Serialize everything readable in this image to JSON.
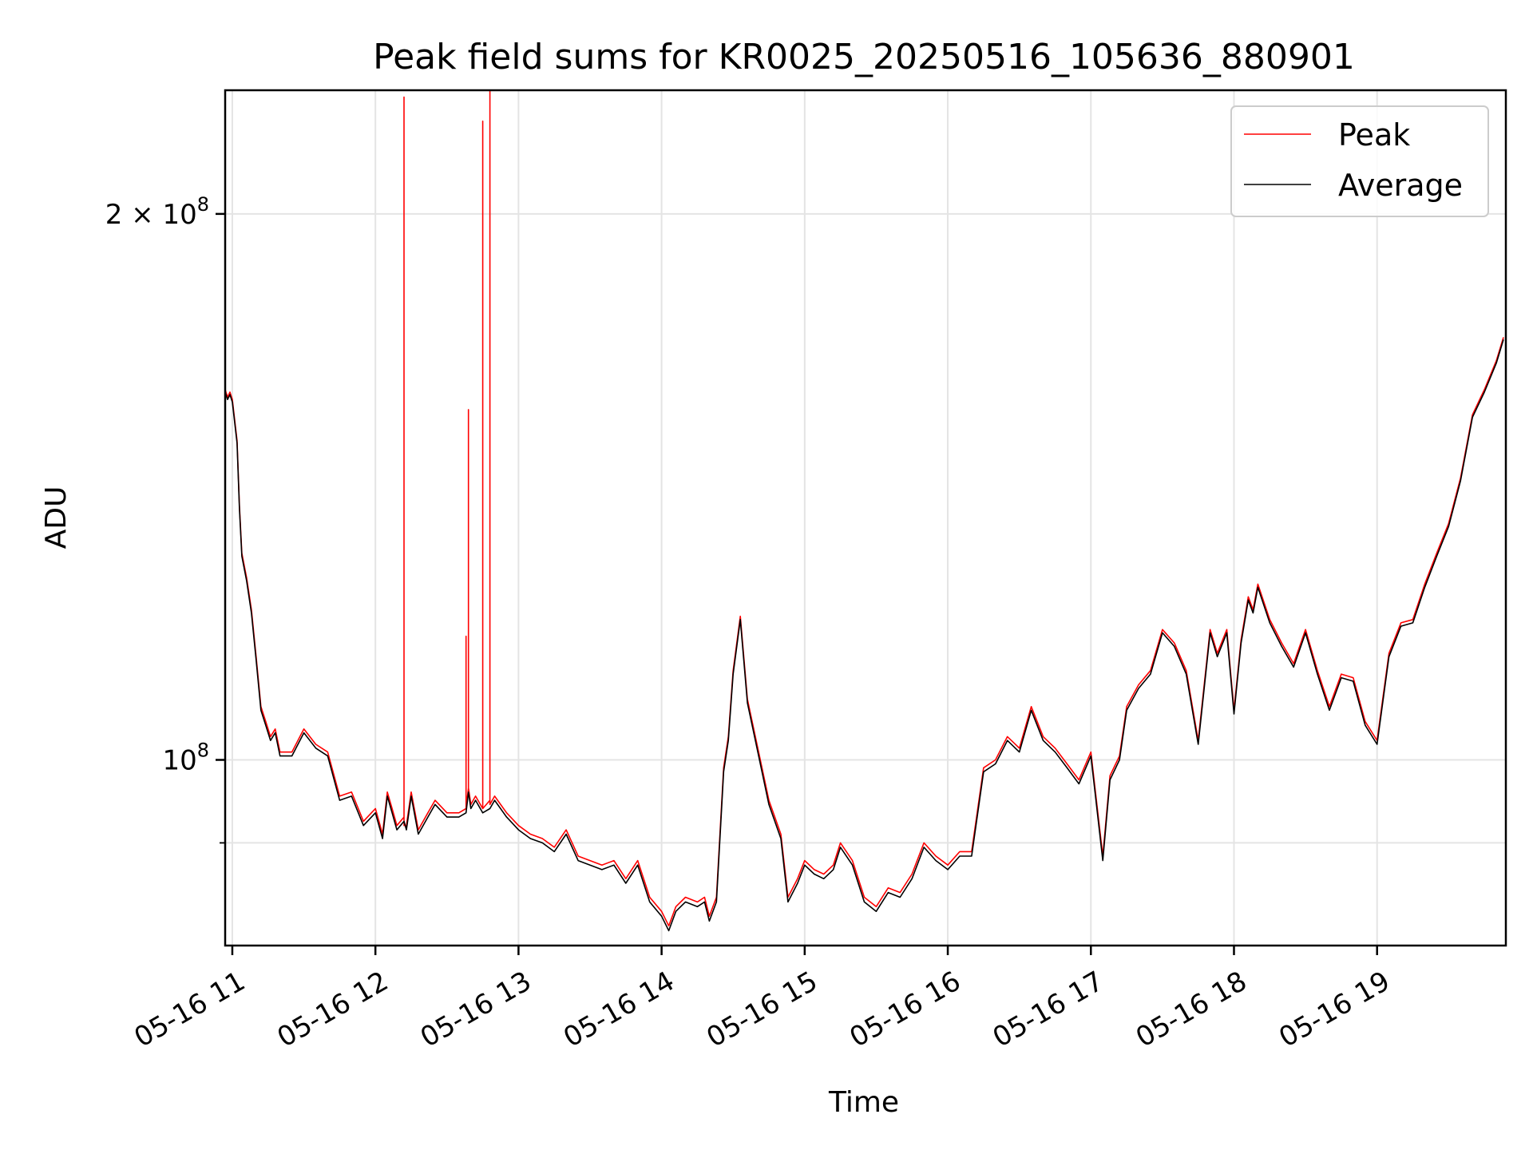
{
  "chart_data": {
    "type": "line",
    "title": "Peak field sums for KR0025_20250516_105636_880901",
    "xlabel": "Time",
    "ylabel": "ADU",
    "y_scale": "log",
    "ylim": [
      79000000,
      234000000
    ],
    "xlim": [
      "2025-05-16 10:57",
      "2025-05-16 19:54"
    ],
    "grid": true,
    "legend_position": "top-right",
    "x_ticks": [
      {
        "value": "2025-05-16 11:00",
        "label": "05-16 11"
      },
      {
        "value": "2025-05-16 12:00",
        "label": "05-16 12"
      },
      {
        "value": "2025-05-16 13:00",
        "label": "05-16 13"
      },
      {
        "value": "2025-05-16 14:00",
        "label": "05-16 14"
      },
      {
        "value": "2025-05-16 15:00",
        "label": "05-16 15"
      },
      {
        "value": "2025-05-16 16:00",
        "label": "05-16 16"
      },
      {
        "value": "2025-05-16 17:00",
        "label": "05-16 17"
      },
      {
        "value": "2025-05-16 18:00",
        "label": "05-16 18"
      },
      {
        "value": "2025-05-16 19:00",
        "label": "05-16 19"
      }
    ],
    "y_major_ticks": [
      {
        "value": 100000000,
        "base": "10",
        "exp": "8",
        "prefix": ""
      },
      {
        "value": 200000000,
        "base": "10",
        "exp": "8",
        "prefix": "2 × "
      }
    ],
    "y_minor_ticks": [
      90000000
    ],
    "series": [
      {
        "name": "Peak",
        "color": "#ff0000",
        "x": [
          "2025-05-16 10:57",
          "2025-05-16 10:58",
          "2025-05-16 10:59",
          "2025-05-16 11:00",
          "2025-05-16 11:02",
          "2025-05-16 11:03",
          "2025-05-16 11:04",
          "2025-05-16 11:06",
          "2025-05-16 11:08",
          "2025-05-16 11:10",
          "2025-05-16 11:12",
          "2025-05-16 11:14",
          "2025-05-16 11:16",
          "2025-05-16 11:18",
          "2025-05-16 11:20",
          "2025-05-16 11:25",
          "2025-05-16 11:30",
          "2025-05-16 11:35",
          "2025-05-16 11:40",
          "2025-05-16 11:45",
          "2025-05-16 11:50",
          "2025-05-16 11:55",
          "2025-05-16 12:00",
          "2025-05-16 12:03",
          "2025-05-16 12:05",
          "2025-05-16 12:07",
          "2025-05-16 12:09",
          "2025-05-16 12:12",
          "2025-05-16 12:12",
          "2025-05-16 12:12",
          "2025-05-16 12:13",
          "2025-05-16 12:15",
          "2025-05-16 12:18",
          "2025-05-16 12:22",
          "2025-05-16 12:25",
          "2025-05-16 12:30",
          "2025-05-16 12:35",
          "2025-05-16 12:38",
          "2025-05-16 12:38",
          "2025-05-16 12:38",
          "2025-05-16 12:39",
          "2025-05-16 12:39",
          "2025-05-16 12:39",
          "2025-05-16 12:40",
          "2025-05-16 12:42",
          "2025-05-16 12:45",
          "2025-05-16 12:45",
          "2025-05-16 12:45",
          "2025-05-16 12:48",
          "2025-05-16 12:48",
          "2025-05-16 12:48",
          "2025-05-16 12:50",
          "2025-05-16 12:55",
          "2025-05-16 13:00",
          "2025-05-16 13:05",
          "2025-05-16 13:10",
          "2025-05-16 13:15",
          "2025-05-16 13:20",
          "2025-05-16 13:25",
          "2025-05-16 13:30",
          "2025-05-16 13:35",
          "2025-05-16 13:40",
          "2025-05-16 13:45",
          "2025-05-16 13:50",
          "2025-05-16 13:55",
          "2025-05-16 14:00",
          "2025-05-16 14:03",
          "2025-05-16 14:06",
          "2025-05-16 14:10",
          "2025-05-16 14:15",
          "2025-05-16 14:18",
          "2025-05-16 14:20",
          "2025-05-16 14:23",
          "2025-05-16 14:26",
          "2025-05-16 14:28",
          "2025-05-16 14:30",
          "2025-05-16 14:33",
          "2025-05-16 14:36",
          "2025-05-16 14:40",
          "2025-05-16 14:45",
          "2025-05-16 14:50",
          "2025-05-16 14:53",
          "2025-05-16 14:57",
          "2025-05-16 15:00",
          "2025-05-16 15:04",
          "2025-05-16 15:08",
          "2025-05-16 15:12",
          "2025-05-16 15:15",
          "2025-05-16 15:20",
          "2025-05-16 15:25",
          "2025-05-16 15:30",
          "2025-05-16 15:35",
          "2025-05-16 15:40",
          "2025-05-16 15:45",
          "2025-05-16 15:50",
          "2025-05-16 15:55",
          "2025-05-16 16:00",
          "2025-05-16 16:05",
          "2025-05-16 16:10",
          "2025-05-16 16:15",
          "2025-05-16 16:20",
          "2025-05-16 16:25",
          "2025-05-16 16:30",
          "2025-05-16 16:35",
          "2025-05-16 16:40",
          "2025-05-16 16:45",
          "2025-05-16 16:50",
          "2025-05-16 16:55",
          "2025-05-16 17:00",
          "2025-05-16 17:05",
          "2025-05-16 17:08",
          "2025-05-16 17:12",
          "2025-05-16 17:15",
          "2025-05-16 17:20",
          "2025-05-16 17:25",
          "2025-05-16 17:30",
          "2025-05-16 17:35",
          "2025-05-16 17:40",
          "2025-05-16 17:45",
          "2025-05-16 17:50",
          "2025-05-16 17:53",
          "2025-05-16 17:57",
          "2025-05-16 18:00",
          "2025-05-16 18:03",
          "2025-05-16 18:06",
          "2025-05-16 18:08",
          "2025-05-16 18:10",
          "2025-05-16 18:15",
          "2025-05-16 18:20",
          "2025-05-16 18:25",
          "2025-05-16 18:30",
          "2025-05-16 18:35",
          "2025-05-16 18:40",
          "2025-05-16 18:45",
          "2025-05-16 18:50",
          "2025-05-16 18:55",
          "2025-05-16 19:00",
          "2025-05-16 19:05",
          "2025-05-16 19:10",
          "2025-05-16 19:15",
          "2025-05-16 19:20",
          "2025-05-16 19:25",
          "2025-05-16 19:30",
          "2025-05-16 19:35",
          "2025-05-16 19:40",
          "2025-05-16 19:45",
          "2025-05-16 19:50",
          "2025-05-16 19:53"
        ],
        "values": [
          160000000,
          158500000,
          159500000,
          158000000,
          150000000,
          138000000,
          130000000,
          126000000,
          121000000,
          114000000,
          107000000,
          105000000,
          103000000,
          104000000,
          101000000,
          101000000,
          104000000,
          102000000,
          101000000,
          95500000,
          96000000,
          92500000,
          94000000,
          91000000,
          96000000,
          94000000,
          92000000,
          93000000,
          232000000,
          92000000,
          92000000,
          96000000,
          91500000,
          93500000,
          95000000,
          93500000,
          93500000,
          94000000,
          117000000,
          94000000,
          96500000,
          156000000,
          96500000,
          94500000,
          95500000,
          94000000,
          225000000,
          94000000,
          95000000,
          234000000,
          94500000,
          95500000,
          93500000,
          92000000,
          91000000,
          90500000,
          89500000,
          91500000,
          88500000,
          88000000,
          87500000,
          88000000,
          86000000,
          88000000,
          84000000,
          82500000,
          81000000,
          83000000,
          84000000,
          83500000,
          84000000,
          82000000,
          84000000,
          99000000,
          103000000,
          112000000,
          120000000,
          108000000,
          102000000,
          95000000,
          91000000,
          84000000,
          86000000,
          88000000,
          87000000,
          86500000,
          87500000,
          90000000,
          88000000,
          84000000,
          83000000,
          85000000,
          84500000,
          86500000,
          90000000,
          88500000,
          87500000,
          89000000,
          89000000,
          99000000,
          100000000,
          103000000,
          101500000,
          107000000,
          103000000,
          101500000,
          99500000,
          97500000,
          101000000,
          88500000,
          98000000,
          100500000,
          107000000,
          110000000,
          112000000,
          118000000,
          116000000,
          112000000,
          102500000,
          118000000,
          114500000,
          118000000,
          106500000,
          116500000,
          123000000,
          121000000,
          125000000,
          119500000,
          116000000,
          113000000,
          118000000,
          112000000,
          107000000,
          111500000,
          111000000,
          105000000,
          102500000,
          114500000,
          119000000,
          119500000,
          125000000,
          130000000,
          135000000,
          143000000,
          155000000,
          160000000,
          166000000,
          171000000
        ]
      },
      {
        "name": "Average",
        "color": "#000000",
        "x": [
          "2025-05-16 10:57",
          "2025-05-16 10:58",
          "2025-05-16 10:59",
          "2025-05-16 11:00",
          "2025-05-16 11:02",
          "2025-05-16 11:03",
          "2025-05-16 11:04",
          "2025-05-16 11:06",
          "2025-05-16 11:08",
          "2025-05-16 11:10",
          "2025-05-16 11:12",
          "2025-05-16 11:14",
          "2025-05-16 11:16",
          "2025-05-16 11:18",
          "2025-05-16 11:20",
          "2025-05-16 11:25",
          "2025-05-16 11:30",
          "2025-05-16 11:35",
          "2025-05-16 11:40",
          "2025-05-16 11:45",
          "2025-05-16 11:50",
          "2025-05-16 11:55",
          "2025-05-16 12:00",
          "2025-05-16 12:03",
          "2025-05-16 12:05",
          "2025-05-16 12:07",
          "2025-05-16 12:09",
          "2025-05-16 12:12",
          "2025-05-16 12:13",
          "2025-05-16 12:15",
          "2025-05-16 12:18",
          "2025-05-16 12:22",
          "2025-05-16 12:25",
          "2025-05-16 12:30",
          "2025-05-16 12:35",
          "2025-05-16 12:38",
          "2025-05-16 12:39",
          "2025-05-16 12:40",
          "2025-05-16 12:42",
          "2025-05-16 12:45",
          "2025-05-16 12:48",
          "2025-05-16 12:50",
          "2025-05-16 12:55",
          "2025-05-16 13:00",
          "2025-05-16 13:05",
          "2025-05-16 13:10",
          "2025-05-16 13:15",
          "2025-05-16 13:20",
          "2025-05-16 13:25",
          "2025-05-16 13:30",
          "2025-05-16 13:35",
          "2025-05-16 13:40",
          "2025-05-16 13:45",
          "2025-05-16 13:50",
          "2025-05-16 13:55",
          "2025-05-16 14:00",
          "2025-05-16 14:03",
          "2025-05-16 14:06",
          "2025-05-16 14:10",
          "2025-05-16 14:15",
          "2025-05-16 14:18",
          "2025-05-16 14:20",
          "2025-05-16 14:23",
          "2025-05-16 14:26",
          "2025-05-16 14:28",
          "2025-05-16 14:30",
          "2025-05-16 14:33",
          "2025-05-16 14:36",
          "2025-05-16 14:40",
          "2025-05-16 14:45",
          "2025-05-16 14:50",
          "2025-05-16 14:53",
          "2025-05-16 14:57",
          "2025-05-16 15:00",
          "2025-05-16 15:04",
          "2025-05-16 15:08",
          "2025-05-16 15:12",
          "2025-05-16 15:15",
          "2025-05-16 15:20",
          "2025-05-16 15:25",
          "2025-05-16 15:30",
          "2025-05-16 15:35",
          "2025-05-16 15:40",
          "2025-05-16 15:45",
          "2025-05-16 15:50",
          "2025-05-16 15:55",
          "2025-05-16 16:00",
          "2025-05-16 16:05",
          "2025-05-16 16:10",
          "2025-05-16 16:15",
          "2025-05-16 16:20",
          "2025-05-16 16:25",
          "2025-05-16 16:30",
          "2025-05-16 16:35",
          "2025-05-16 16:40",
          "2025-05-16 16:45",
          "2025-05-16 16:50",
          "2025-05-16 16:55",
          "2025-05-16 17:00",
          "2025-05-16 17:05",
          "2025-05-16 17:08",
          "2025-05-16 17:12",
          "2025-05-16 17:15",
          "2025-05-16 17:20",
          "2025-05-16 17:25",
          "2025-05-16 17:30",
          "2025-05-16 17:35",
          "2025-05-16 17:40",
          "2025-05-16 17:45",
          "2025-05-16 17:50",
          "2025-05-16 17:53",
          "2025-05-16 17:57",
          "2025-05-16 18:00",
          "2025-05-16 18:03",
          "2025-05-16 18:06",
          "2025-05-16 18:08",
          "2025-05-16 18:10",
          "2025-05-16 18:15",
          "2025-05-16 18:20",
          "2025-05-16 18:25",
          "2025-05-16 18:30",
          "2025-05-16 18:35",
          "2025-05-16 18:40",
          "2025-05-16 18:45",
          "2025-05-16 18:50",
          "2025-05-16 18:55",
          "2025-05-16 19:00",
          "2025-05-16 19:05",
          "2025-05-16 19:10",
          "2025-05-16 19:15",
          "2025-05-16 19:20",
          "2025-05-16 19:25",
          "2025-05-16 19:30",
          "2025-05-16 19:35",
          "2025-05-16 19:40",
          "2025-05-16 19:45",
          "2025-05-16 19:50",
          "2025-05-16 19:53"
        ],
        "values": [
          159500000,
          158000000,
          159000000,
          157500000,
          149500000,
          137500000,
          129500000,
          125500000,
          120500000,
          113500000,
          106500000,
          104500000,
          102500000,
          103500000,
          100500000,
          100500000,
          103500000,
          101500000,
          100500000,
          95000000,
          95500000,
          92000000,
          93500000,
          90500000,
          95500000,
          93500000,
          91500000,
          92500000,
          91500000,
          95500000,
          91000000,
          93000000,
          94500000,
          93000000,
          93000000,
          93500000,
          96000000,
          94000000,
          95000000,
          93500000,
          94000000,
          95000000,
          93000000,
          91500000,
          90500000,
          90000000,
          89000000,
          91000000,
          88000000,
          87500000,
          87000000,
          87500000,
          85500000,
          87500000,
          83500000,
          82000000,
          80500000,
          82500000,
          83500000,
          83000000,
          83500000,
          81500000,
          83500000,
          98500000,
          102500000,
          111500000,
          119500000,
          107500000,
          101500000,
          94500000,
          90500000,
          83500000,
          85500000,
          87500000,
          86500000,
          86000000,
          87000000,
          89500000,
          87500000,
          83500000,
          82500000,
          84500000,
          84000000,
          86000000,
          89500000,
          88000000,
          87000000,
          88500000,
          88500000,
          98500000,
          99500000,
          102500000,
          101000000,
          106500000,
          102500000,
          101000000,
          99000000,
          97000000,
          100500000,
          88000000,
          97500000,
          100000000,
          106500000,
          109500000,
          111500000,
          117500000,
          115500000,
          111500000,
          102000000,
          117500000,
          114000000,
          117500000,
          106000000,
          116000000,
          122500000,
          120500000,
          124500000,
          119000000,
          115500000,
          112500000,
          117500000,
          111500000,
          106500000,
          111000000,
          110500000,
          104500000,
          102000000,
          114000000,
          118500000,
          119000000,
          124500000,
          129500000,
          134500000,
          142500000,
          154500000,
          159500000,
          165500000,
          170500000
        ]
      }
    ]
  }
}
